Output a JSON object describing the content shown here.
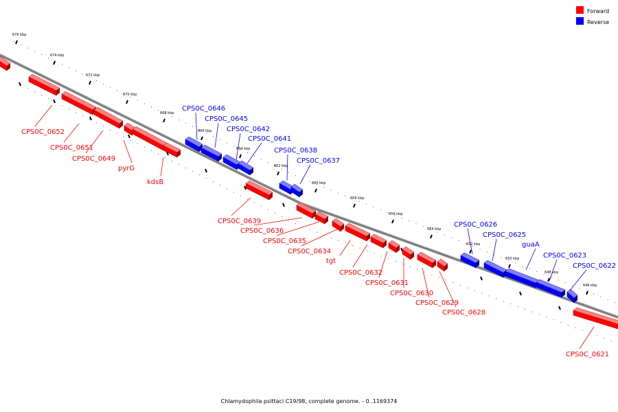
{
  "caption": "Chlamydophila psittaci C19/98, complete genome. - 0..1169374",
  "legend": {
    "forward": {
      "label": "Forward",
      "color": "#ff0000"
    },
    "reverse": {
      "label": "Reverse",
      "color": "#0000ff"
    }
  },
  "colors": {
    "forward": "#ff0000",
    "reverse": "#0000ff",
    "axis": "#808080"
  },
  "ticks": [
    "676 kbp",
    "674 kbp",
    "672 kbp",
    "670 kbp",
    "668 kbp",
    "666 kbp",
    "664 kbp",
    "662 kbp",
    "660 kbp",
    "658 kbp",
    "656 kbp",
    "654 kbp",
    "652 kbp",
    "650 kbp",
    "648 kbp",
    "646 kbp"
  ],
  "genes": [
    {
      "label": "CPS0C_0652",
      "strand": "forward"
    },
    {
      "label": "CPS0C_0651",
      "strand": "forward"
    },
    {
      "label": "CPS0C_0649",
      "strand": "forward"
    },
    {
      "label": "pyrG",
      "strand": "forward"
    },
    {
      "label": "kdsB",
      "strand": "forward"
    },
    {
      "label": "CPS0C_0646",
      "strand": "reverse"
    },
    {
      "label": "CPS0C_0645",
      "strand": "reverse"
    },
    {
      "label": "CPS0C_0642",
      "strand": "reverse"
    },
    {
      "label": "CPS0C_0641",
      "strand": "reverse"
    },
    {
      "label": "CPS0C_0638",
      "strand": "reverse"
    },
    {
      "label": "CPS0C_0637",
      "strand": "reverse"
    },
    {
      "label": "CPS0C_0639",
      "strand": "forward"
    },
    {
      "label": "CPS0C_0636",
      "strand": "forward"
    },
    {
      "label": "CPS0C_0635",
      "strand": "forward"
    },
    {
      "label": "CPS0C_0634",
      "strand": "forward"
    },
    {
      "label": "tgt",
      "strand": "forward"
    },
    {
      "label": "CPS0C_0632",
      "strand": "forward"
    },
    {
      "label": "CPS0C_0631",
      "strand": "forward"
    },
    {
      "label": "CPS0C_0630",
      "strand": "forward"
    },
    {
      "label": "CPS0C_0629",
      "strand": "forward"
    },
    {
      "label": "CPS0C_0628",
      "strand": "forward"
    },
    {
      "label": "CPS0C_0626",
      "strand": "reverse"
    },
    {
      "label": "CPS0C_0625",
      "strand": "reverse"
    },
    {
      "label": "guaA",
      "strand": "reverse"
    },
    {
      "label": "CPS0C_0623",
      "strand": "reverse"
    },
    {
      "label": "CPS0C_0622",
      "strand": "reverse"
    },
    {
      "label": "CPS0C_0621",
      "strand": "forward"
    }
  ]
}
